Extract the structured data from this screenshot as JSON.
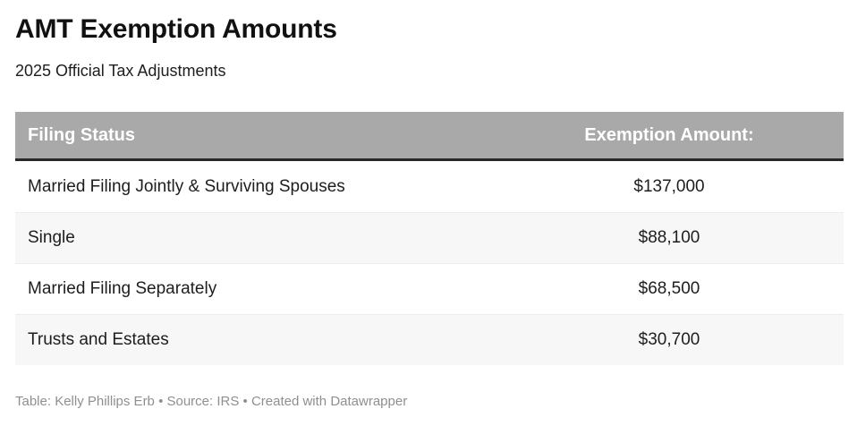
{
  "page": {
    "title": "AMT Exemption Amounts",
    "subtitle": "2025 Official Tax Adjustments"
  },
  "table": {
    "columns": [
      {
        "label": "Filing Status"
      },
      {
        "label": "Exemption Amount:"
      }
    ],
    "rows": [
      {
        "status": "Married Filing Jointly & Surviving Spouses",
        "amount": "$137,000"
      },
      {
        "status": "Single",
        "amount": "$88,100"
      },
      {
        "status": "Married Filing Separately",
        "amount": "$68,500"
      },
      {
        "status": "Trusts and Estates",
        "amount": "$30,700"
      }
    ]
  },
  "footer": {
    "text": "Table: Kelly Phillips Erb • Source: IRS • Created with Datawrapper"
  },
  "colors": {
    "header_background": "#a9a9a9",
    "header_text": "#ffffff",
    "header_bottom_border": "#282828",
    "row_alt_background": "#f7f7f7",
    "row_background": "#ffffff",
    "body_text": "#1d1d1d",
    "footer_text": "#8f8f8f",
    "title_text": "#111111"
  },
  "chart_data": {
    "type": "table",
    "title": "AMT Exemption Amounts",
    "subtitle": "2025 Official Tax Adjustments",
    "columns": [
      "Filing Status",
      "Exemption Amount:"
    ],
    "categories": [
      "Married Filing Jointly & Surviving Spouses",
      "Single",
      "Married Filing Separately",
      "Trusts and Estates"
    ],
    "values": [
      137000,
      88100,
      68500,
      30700
    ],
    "value_labels": [
      "$137,000",
      "$88,100",
      "$68,500",
      "$30,700"
    ],
    "source": "Table: Kelly Phillips Erb • Source: IRS • Created with Datawrapper"
  }
}
